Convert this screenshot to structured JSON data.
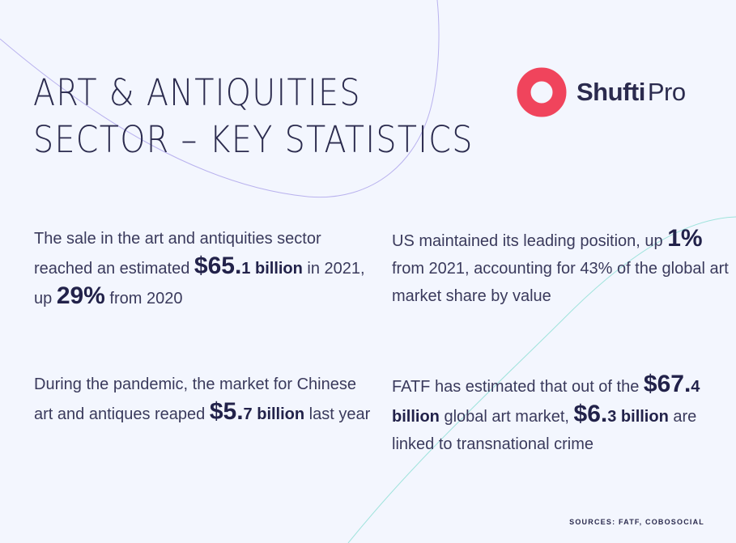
{
  "title": {
    "line1": "ART & ANTIQUITIES",
    "line2": "SECTOR – KEY STATISTICS"
  },
  "logo": {
    "icon": "shufti-pro-logo-icon",
    "brand_bold": "Shufti",
    "brand_light": "Pro",
    "color": "#f0445c"
  },
  "stats": [
    {
      "t1": "The sale in the art and antiquities sector reached an estimated ",
      "v1_big": "$65.",
      "v1_small": "1",
      "t2": " ",
      "v2": "billion",
      "t3": " in 2021, up ",
      "v3": "29%",
      "t4": " from 2020"
    },
    {
      "t1": "US maintained its leading position, up ",
      "v1": "1%",
      "t2": " from 2021, accounting for 43% of the global art market share by value"
    },
    {
      "t1": "During the pandemic, the market for Chinese art and antiques reaped ",
      "v1_big": "$5.",
      "v1_small": "7 billion",
      "t2": " last year"
    },
    {
      "t1": "FATF has estimated that out of the ",
      "v1_big": "$67.",
      "v1_small": "4 billion",
      "t2": " global art market, ",
      "v2_big": "$6.",
      "v2_small": "3 billion",
      "t3": " are linked to transnational crime"
    }
  ],
  "sources": "SOURCES: FATF, COBOSOCIAL",
  "colors": {
    "background": "#f3f6fe",
    "text": "#26264a",
    "accent_red": "#f0445c",
    "deco_purple": "#b9b2ee",
    "deco_teal": "#9fe3dc"
  }
}
